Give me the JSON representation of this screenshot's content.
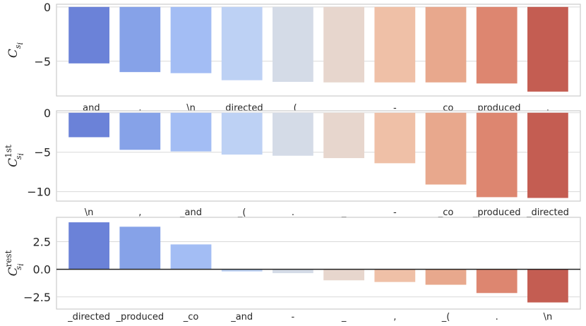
{
  "chart_data": [
    {
      "type": "bar",
      "ylabel": {
        "symbol": "C",
        "subscript": "s",
        "subsubscript": "i",
        "superscript": ""
      },
      "ylim": [
        -8.2,
        0.25
      ],
      "yticks": [
        0,
        -5
      ],
      "ytick_labels": [
        "0",
        "−5"
      ],
      "categories": [
        "_and",
        ",",
        "\\n",
        "_directed",
        "_(",
        "_",
        "-",
        "_co",
        "_produced",
        "."
      ],
      "values": [
        -5.2,
        -6.0,
        -6.1,
        -6.75,
        -6.9,
        -6.95,
        -6.95,
        -6.95,
        -7.05,
        -7.8
      ],
      "colors": [
        "#6b82d8",
        "#86a2e8",
        "#a3bdf4",
        "#bdd1f4",
        "#d4dbe7",
        "#e7d6cd",
        "#efc0a7",
        "#e8a88d",
        "#dd8670",
        "#c45d52"
      ],
      "grid": true
    },
    {
      "type": "bar",
      "ylabel": {
        "symbol": "C",
        "subscript": "s",
        "subsubscript": "i",
        "superscript": "1st"
      },
      "ylim": [
        -11.2,
        0.25
      ],
      "yticks": [
        0,
        -5,
        -10
      ],
      "ytick_labels": [
        "0",
        "−5",
        "−10"
      ],
      "categories": [
        "\\n",
        ",",
        "_and",
        "_(",
        ".",
        "_",
        "-",
        "_co",
        "_produced",
        "_directed"
      ],
      "values": [
        -3.1,
        -4.7,
        -4.9,
        -5.3,
        -5.45,
        -5.75,
        -6.4,
        -9.1,
        -10.7,
        -10.8
      ],
      "colors": [
        "#6b82d8",
        "#86a2e8",
        "#a3bdf4",
        "#bdd1f4",
        "#d4dbe7",
        "#e7d6cd",
        "#efc0a7",
        "#e8a88d",
        "#dd8670",
        "#c45d52"
      ],
      "grid": true
    },
    {
      "type": "bar",
      "ylabel": {
        "symbol": "C",
        "subscript": "s",
        "subsubscript": "i",
        "superscript": "rest"
      },
      "ylim": [
        -3.6,
        4.7
      ],
      "yticks": [
        2.5,
        0.0,
        -2.5
      ],
      "ytick_labels": [
        "2.5",
        "0.0",
        "−2.5"
      ],
      "categories": [
        "_directed",
        "_produced",
        "_co",
        "_and",
        "-",
        "_",
        ",",
        "_(",
        ".",
        "\\n"
      ],
      "values": [
        4.25,
        3.85,
        2.25,
        -0.2,
        -0.35,
        -1.0,
        -1.15,
        -1.4,
        -2.15,
        -3.0
      ],
      "colors": [
        "#6b82d8",
        "#86a2e8",
        "#a3bdf4",
        "#bdd1f4",
        "#d4dbe7",
        "#e7d6cd",
        "#efc0a7",
        "#e8a88d",
        "#dd8670",
        "#c45d52"
      ],
      "grid": true,
      "zero_line": true
    }
  ]
}
